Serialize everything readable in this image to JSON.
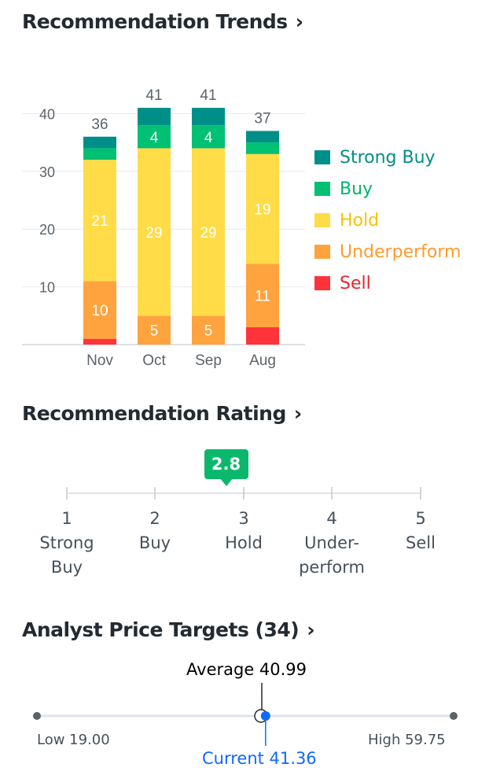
{
  "sections": {
    "trends_title": "Recommendation Trends",
    "rating_title": "Recommendation Rating",
    "targets_title": "Analyst Price Targets (34)",
    "chevron": "›"
  },
  "chart_data": {
    "type": "bar",
    "stacked": true,
    "categories": [
      "Nov",
      "Oct",
      "Sep",
      "Aug"
    ],
    "ylim": [
      0,
      41
    ],
    "yticks": [
      10,
      20,
      30,
      40
    ],
    "totals": [
      36,
      41,
      41,
      37
    ],
    "series": [
      {
        "name": "Sell",
        "color": "#ff333a",
        "values": [
          1,
          0,
          0,
          3
        ]
      },
      {
        "name": "Underperform",
        "color": "#ffa33e",
        "values": [
          10,
          5,
          5,
          11
        ]
      },
      {
        "name": "Hold",
        "color": "#ffdc48",
        "values": [
          21,
          29,
          29,
          19
        ]
      },
      {
        "name": "Buy",
        "color": "#00c073",
        "values": [
          2,
          4,
          4,
          2
        ]
      },
      {
        "name": "Strong Buy",
        "color": "#008f88",
        "values": [
          2,
          3,
          3,
          2
        ]
      }
    ],
    "segment_labels": [
      {
        "series": "Underperform",
        "index": 0,
        "text": "10"
      },
      {
        "series": "Hold",
        "index": 0,
        "text": "21"
      },
      {
        "series": "Underperform",
        "index": 1,
        "text": "5"
      },
      {
        "series": "Hold",
        "index": 1,
        "text": "29"
      },
      {
        "series": "Buy",
        "index": 1,
        "text": "4"
      },
      {
        "series": "Underperform",
        "index": 2,
        "text": "5"
      },
      {
        "series": "Hold",
        "index": 2,
        "text": "29"
      },
      {
        "series": "Buy",
        "index": 2,
        "text": "4"
      },
      {
        "series": "Underperform",
        "index": 3,
        "text": "11"
      },
      {
        "series": "Hold",
        "index": 3,
        "text": "19"
      }
    ],
    "legend": {
      "placement": "right",
      "items": [
        {
          "name": "Strong Buy",
          "color": "#008f88"
        },
        {
          "name": "Buy",
          "color": "#00c073"
        },
        {
          "name": "Hold",
          "color": "#ffdc48"
        },
        {
          "name": "Underperform",
          "color": "#ffa33e"
        },
        {
          "name": "Sell",
          "color": "#ff333a"
        }
      ]
    }
  },
  "rating": {
    "value": "2.8",
    "numeric": 2.8,
    "badge_color": "#0bb86b",
    "scale": [
      {
        "num": "1",
        "line1": "Strong",
        "line2": "Buy"
      },
      {
        "num": "2",
        "line1": "Buy",
        "line2": ""
      },
      {
        "num": "3",
        "line1": "Hold",
        "line2": ""
      },
      {
        "num": "4",
        "line1": "Under-",
        "line2": "perform"
      },
      {
        "num": "5",
        "line1": "Sell",
        "line2": ""
      }
    ]
  },
  "price_targets": {
    "low_label": "Low 19.00",
    "high_label": "High 59.75",
    "average_label": "Average 40.99",
    "current_label": "Current 41.36",
    "low": 19.0,
    "high": 59.75,
    "average": 40.99,
    "current": 41.36,
    "current_color": "#0f69ff"
  }
}
